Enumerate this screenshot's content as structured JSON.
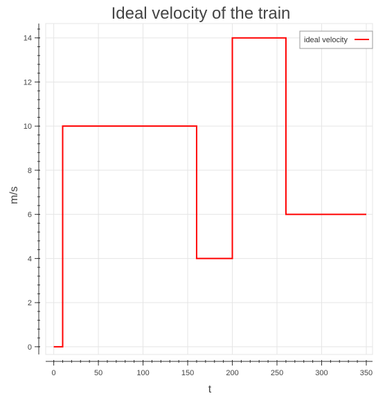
{
  "chart_data": {
    "type": "line",
    "step": true,
    "title": "Ideal velocity of the train",
    "xlabel": "t",
    "ylabel": "m/s",
    "xlim": [
      -9,
      357
    ],
    "ylim": [
      -0.35,
      14.65
    ],
    "x_ticks": [
      0,
      50,
      100,
      150,
      200,
      250,
      300,
      350
    ],
    "y_ticks": [
      0,
      2,
      4,
      6,
      8,
      10,
      12,
      14
    ],
    "grid": true,
    "legend_position": "top-right",
    "series": [
      {
        "name": "ideal velocity",
        "color": "#ff0000",
        "points": [
          [
            0,
            0
          ],
          [
            10,
            0
          ],
          [
            10,
            10
          ],
          [
            160,
            10
          ],
          [
            160,
            4
          ],
          [
            200,
            4
          ],
          [
            200,
            14
          ],
          [
            260,
            14
          ],
          [
            260,
            6
          ],
          [
            350,
            6
          ]
        ]
      }
    ]
  }
}
